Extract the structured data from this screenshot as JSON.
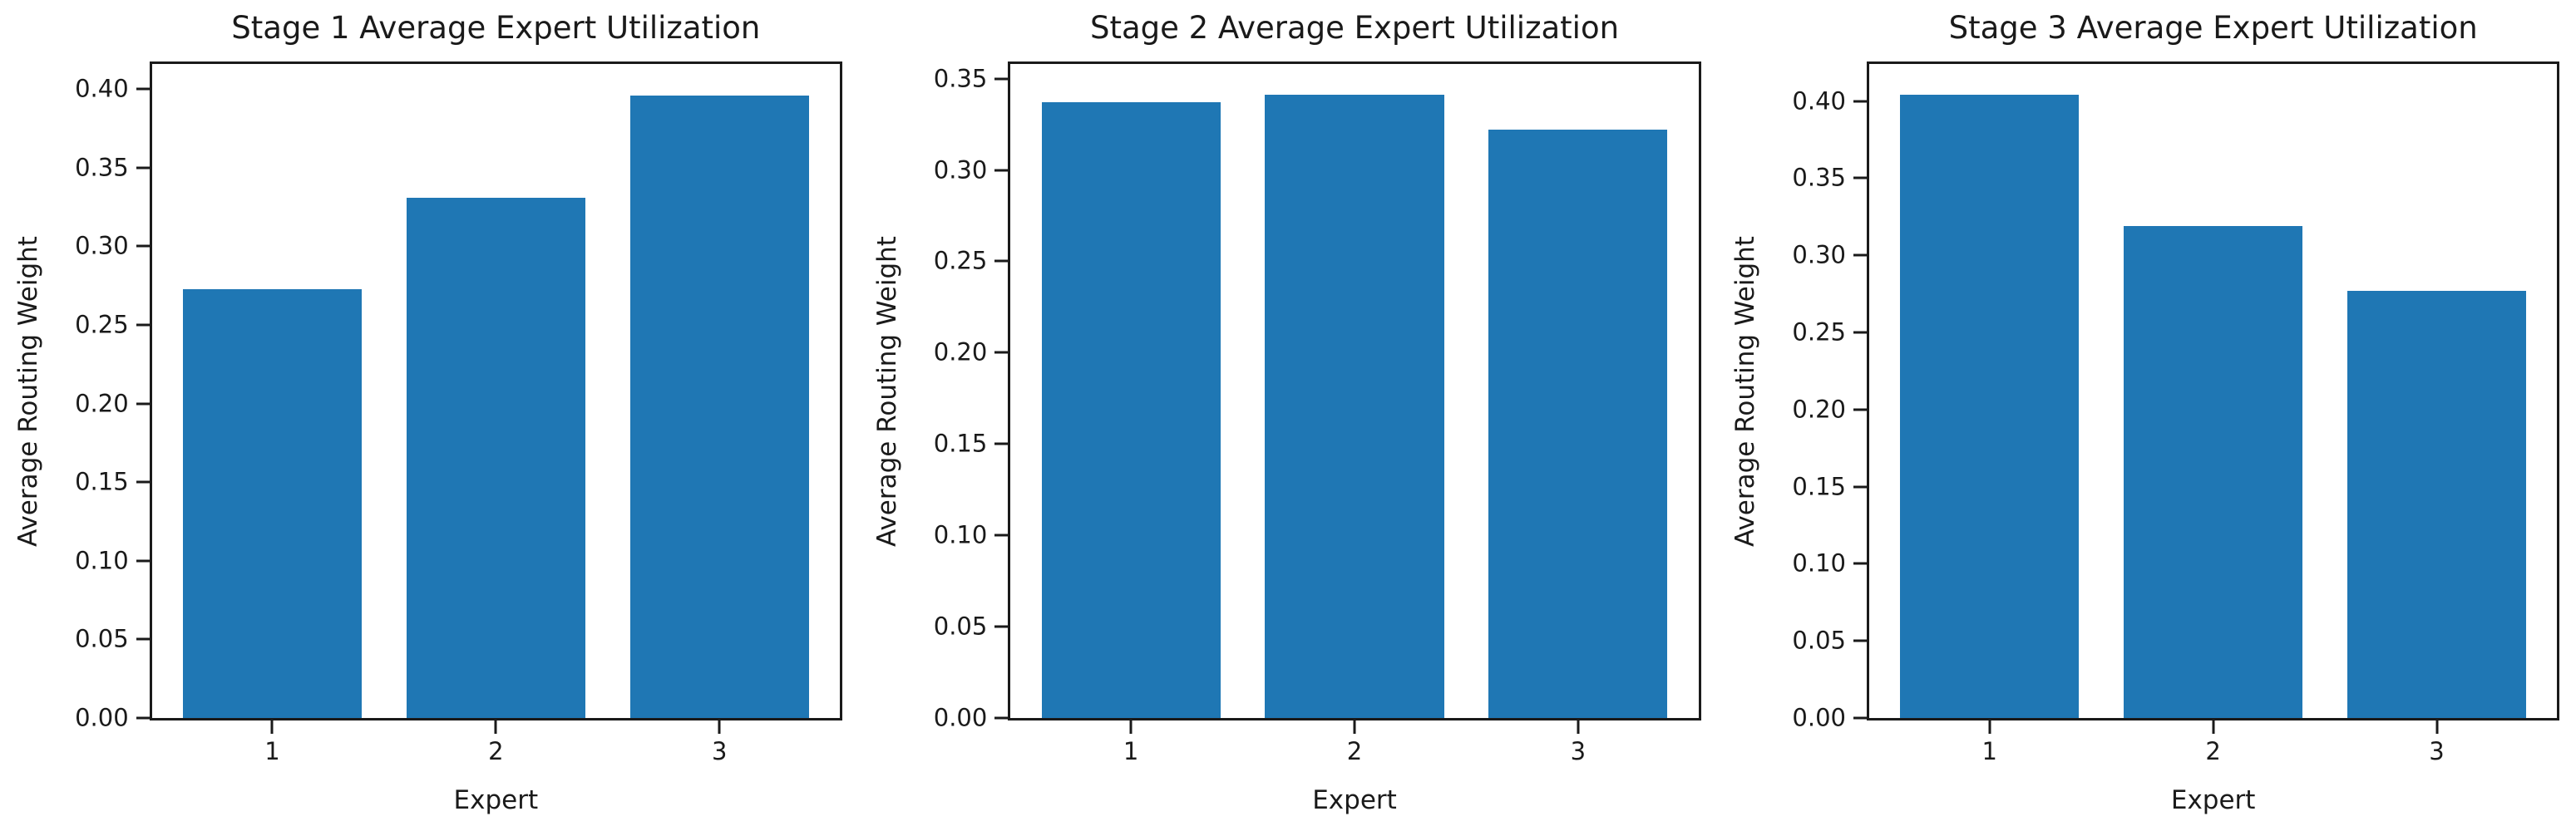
{
  "figure": {
    "background_color": "#ffffff",
    "bar_color": "#1f77b4",
    "spine_color": "#1a1a1a",
    "text_color": "#1a1a1a"
  },
  "chart_data": [
    {
      "type": "bar",
      "title": "Stage 1 Average Expert Utilization",
      "xlabel": "Expert",
      "ylabel": "Average Routing Weight",
      "categories": [
        "1",
        "2",
        "3"
      ],
      "values": [
        0.273,
        0.331,
        0.396
      ],
      "ylim": [
        0,
        0.416
      ],
      "yticks": [
        0.0,
        0.05,
        0.1,
        0.15,
        0.2,
        0.25,
        0.3,
        0.35,
        0.4
      ],
      "grid": false,
      "legend": null,
      "bar_color": "#1f77b4"
    },
    {
      "type": "bar",
      "title": "Stage 2 Average Expert Utilization",
      "xlabel": "Expert",
      "ylabel": "Average Routing Weight",
      "categories": [
        "1",
        "2",
        "3"
      ],
      "values": [
        0.337,
        0.341,
        0.322
      ],
      "ylim": [
        0,
        0.358
      ],
      "yticks": [
        0.0,
        0.05,
        0.1,
        0.15,
        0.2,
        0.25,
        0.3,
        0.35
      ],
      "grid": false,
      "legend": null,
      "bar_color": "#1f77b4"
    },
    {
      "type": "bar",
      "title": "Stage 3 Average Expert Utilization",
      "xlabel": "Expert",
      "ylabel": "Average Routing Weight",
      "categories": [
        "1",
        "2",
        "3"
      ],
      "values": [
        0.404,
        0.319,
        0.277
      ],
      "ylim": [
        0,
        0.424
      ],
      "yticks": [
        0.0,
        0.05,
        0.1,
        0.15,
        0.2,
        0.25,
        0.3,
        0.35,
        0.4
      ],
      "grid": false,
      "legend": null,
      "bar_color": "#1f77b4"
    }
  ]
}
